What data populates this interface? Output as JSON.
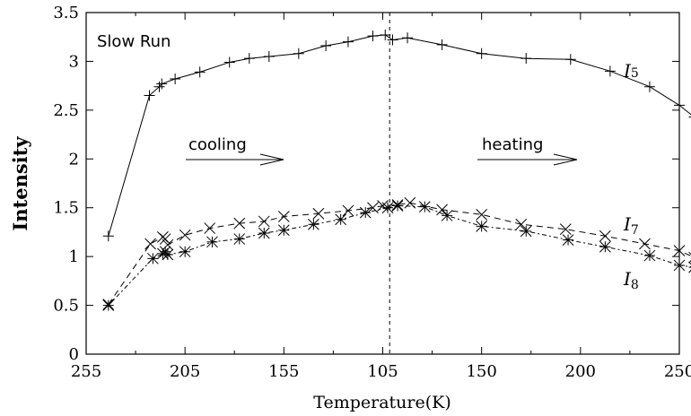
{
  "chart_data": {
    "type": "line",
    "xlabel": "Temperature(K)",
    "ylabel": "Intensity",
    "ylim": [
      0,
      3.5
    ],
    "y_ticks": [
      "0",
      "0.5",
      "1",
      "1.5",
      "2",
      "2.5",
      "3",
      "3.5"
    ],
    "x_axis_note": "cooling (left half, decreasing T) then heating (right half, increasing T); sequence index 0-12 maps to tick labels",
    "x_ticks": [
      "255",
      "205",
      "155",
      "105",
      "150",
      "200",
      "250"
    ],
    "x_range_index": [
      0,
      12
    ],
    "turnaround_index": 6.14,
    "annotations": {
      "panel_label": "Slow Run",
      "cooling": "cooling",
      "heating": "heating"
    },
    "series": [
      {
        "name": "I5",
        "label_main": "I",
        "label_sub": "5",
        "marker": "plus",
        "line": "solid",
        "points": [
          [
            0.45,
            1.21
          ],
          [
            1.28,
            2.65
          ],
          [
            1.48,
            2.74
          ],
          [
            1.53,
            2.77
          ],
          [
            1.8,
            2.82
          ],
          [
            2.3,
            2.89
          ],
          [
            2.9,
            2.99
          ],
          [
            3.3,
            3.03
          ],
          [
            3.7,
            3.05
          ],
          [
            4.3,
            3.08
          ],
          [
            4.85,
            3.16
          ],
          [
            5.3,
            3.2
          ],
          [
            5.8,
            3.26
          ],
          [
            6.05,
            3.27
          ],
          [
            6.2,
            3.22
          ],
          [
            6.5,
            3.24
          ],
          [
            7.2,
            3.17
          ],
          [
            8.0,
            3.08
          ],
          [
            8.9,
            3.03
          ],
          [
            9.8,
            3.02
          ],
          [
            10.6,
            2.9
          ],
          [
            11.4,
            2.74
          ],
          [
            12.0,
            2.55
          ],
          [
            12.3,
            2.43
          ]
        ]
      },
      {
        "name": "I7",
        "label_main": "I",
        "label_sub": "7",
        "marker": "x",
        "line": "dashed",
        "points": [
          [
            0.45,
            0.51
          ],
          [
            1.3,
            1.13
          ],
          [
            1.55,
            1.2
          ],
          [
            1.6,
            1.18
          ],
          [
            1.65,
            1.12
          ],
          [
            2.0,
            1.22
          ],
          [
            2.5,
            1.29
          ],
          [
            3.1,
            1.34
          ],
          [
            3.6,
            1.36
          ],
          [
            4.0,
            1.41
          ],
          [
            4.7,
            1.44
          ],
          [
            5.3,
            1.47
          ],
          [
            5.8,
            1.5
          ],
          [
            6.0,
            1.52
          ],
          [
            6.3,
            1.53
          ],
          [
            6.55,
            1.55
          ],
          [
            7.2,
            1.48
          ],
          [
            8.0,
            1.43
          ],
          [
            8.8,
            1.33
          ],
          [
            9.7,
            1.28
          ],
          [
            10.5,
            1.21
          ],
          [
            11.3,
            1.13
          ],
          [
            12.0,
            1.06
          ],
          [
            12.3,
            0.99
          ]
        ]
      },
      {
        "name": "I8",
        "label_main": "I",
        "label_sub": "8",
        "marker": "star",
        "line": "dotted-dashed",
        "points": [
          [
            0.45,
            0.5
          ],
          [
            1.35,
            0.98
          ],
          [
            1.55,
            1.03
          ],
          [
            1.6,
            1.05
          ],
          [
            1.65,
            1.02
          ],
          [
            2.0,
            1.05
          ],
          [
            2.55,
            1.15
          ],
          [
            3.1,
            1.18
          ],
          [
            3.6,
            1.24
          ],
          [
            4.0,
            1.27
          ],
          [
            4.6,
            1.33
          ],
          [
            5.15,
            1.38
          ],
          [
            5.65,
            1.45
          ],
          [
            6.1,
            1.5
          ],
          [
            6.3,
            1.52
          ],
          [
            6.85,
            1.51
          ],
          [
            7.3,
            1.42
          ],
          [
            8.0,
            1.31
          ],
          [
            8.9,
            1.26
          ],
          [
            9.75,
            1.17
          ],
          [
            10.5,
            1.1
          ],
          [
            11.4,
            1.01
          ],
          [
            12.0,
            0.91
          ],
          [
            12.3,
            0.89
          ]
        ]
      }
    ]
  }
}
